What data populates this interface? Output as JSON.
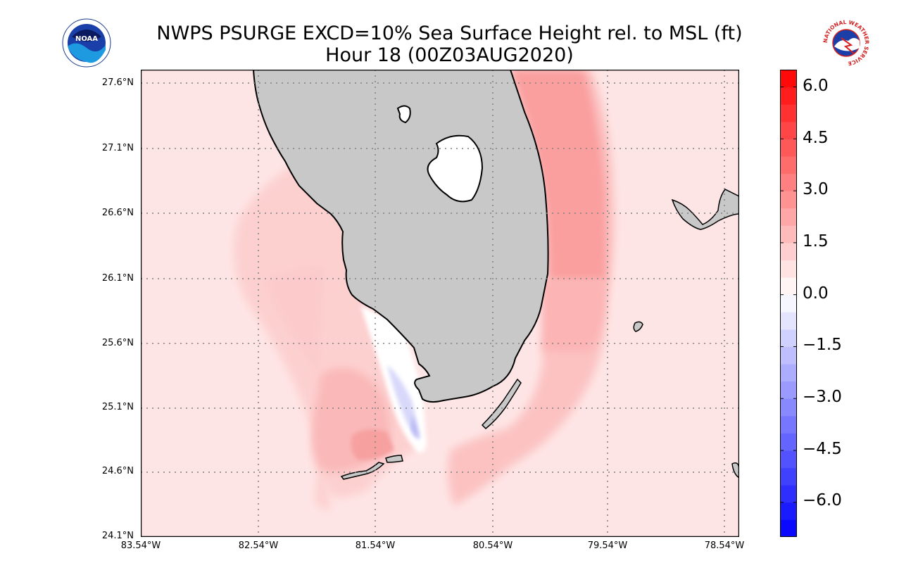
{
  "header": {
    "title_line1": "NWPS PSURGE EXCD=10% Sea Surface Height rel. to MSL (ft)",
    "title_line2": "Hour 18 (00Z03AUG2020)"
  },
  "logos": {
    "left": {
      "name": "NOAA",
      "text": "NOAA"
    },
    "right": {
      "name": "National Weather Service",
      "text": "NATIONAL WEATHER SERVICE"
    }
  },
  "map": {
    "lat_labels": [
      "27.6°N",
      "27.1°N",
      "26.6°N",
      "26.1°N",
      "25.6°N",
      "25.1°N",
      "24.6°N",
      "24.1°N"
    ],
    "lon_labels": [
      "83.54°W",
      "82.54°W",
      "81.54°W",
      "80.54°W",
      "79.54°W",
      "78.54°W"
    ],
    "lat_range": [
      24.1,
      27.7
    ],
    "lon_range": [
      -83.54,
      -78.45
    ]
  },
  "colorbar": {
    "labels": [
      "6.0",
      "4.5",
      "3.0",
      "1.5",
      "0.0",
      "−1.5",
      "−3.0",
      "−4.5",
      "−6.0"
    ],
    "range": [
      -7,
      6.5
    ],
    "units": "ft",
    "colors": {
      "positive": "#ff0000",
      "zero": "#ffffff",
      "negative": "#0000ff"
    }
  }
}
